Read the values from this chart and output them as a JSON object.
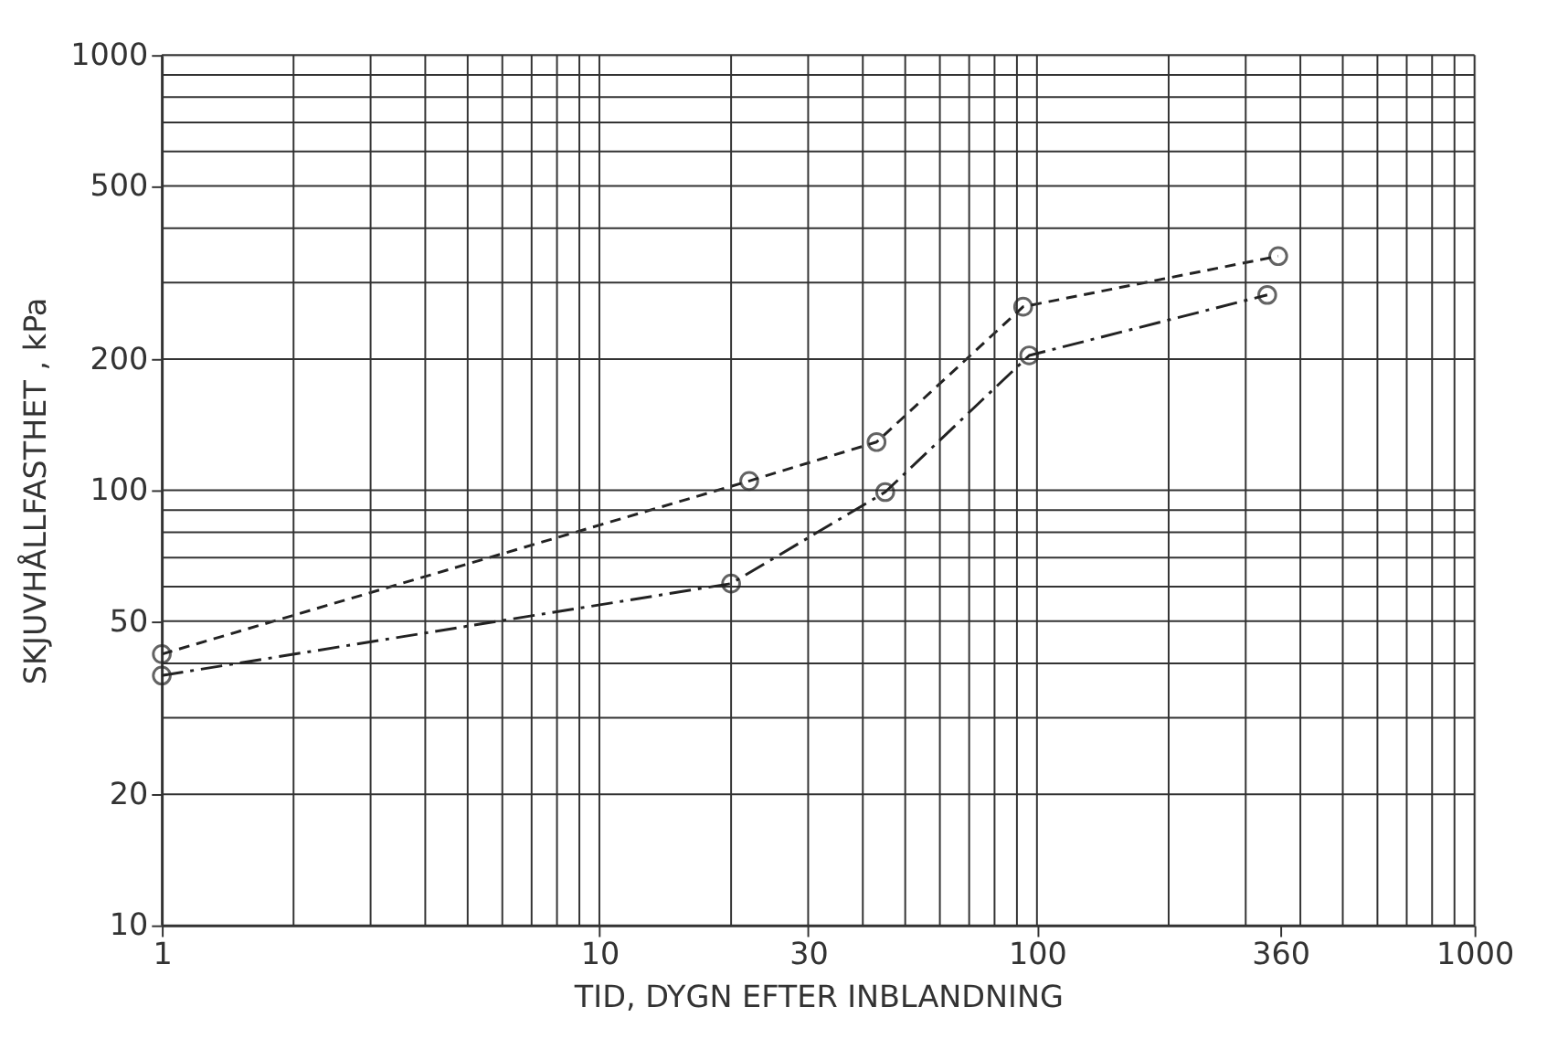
{
  "chart_data": {
    "type": "line",
    "xlabel": "TID, DYGN  EFTER  INBLANDNING",
    "ylabel": "SKJUVHÅLLFASTHET , kPa",
    "log": "xy",
    "grid": true,
    "marker": "circle",
    "xlim": [
      1,
      1000
    ],
    "xticks": [
      1,
      10,
      30,
      100,
      360,
      1000
    ],
    "ylim": [
      10,
      1000
    ],
    "yticks": [
      10,
      20,
      50,
      100,
      200,
      500,
      1000
    ],
    "series": [
      {
        "color": "#222222",
        "line_style": "dashed",
        "x": [
          1,
          22,
          43,
          93,
          356
        ],
        "values": [
          42,
          105,
          129,
          264,
          345
        ]
      },
      {
        "color": "#222222",
        "line_style": "dashed",
        "x": [
          1,
          20,
          45,
          96,
          336
        ],
        "values": [
          37.5,
          61,
          99,
          204,
          281
        ]
      }
    ]
  }
}
